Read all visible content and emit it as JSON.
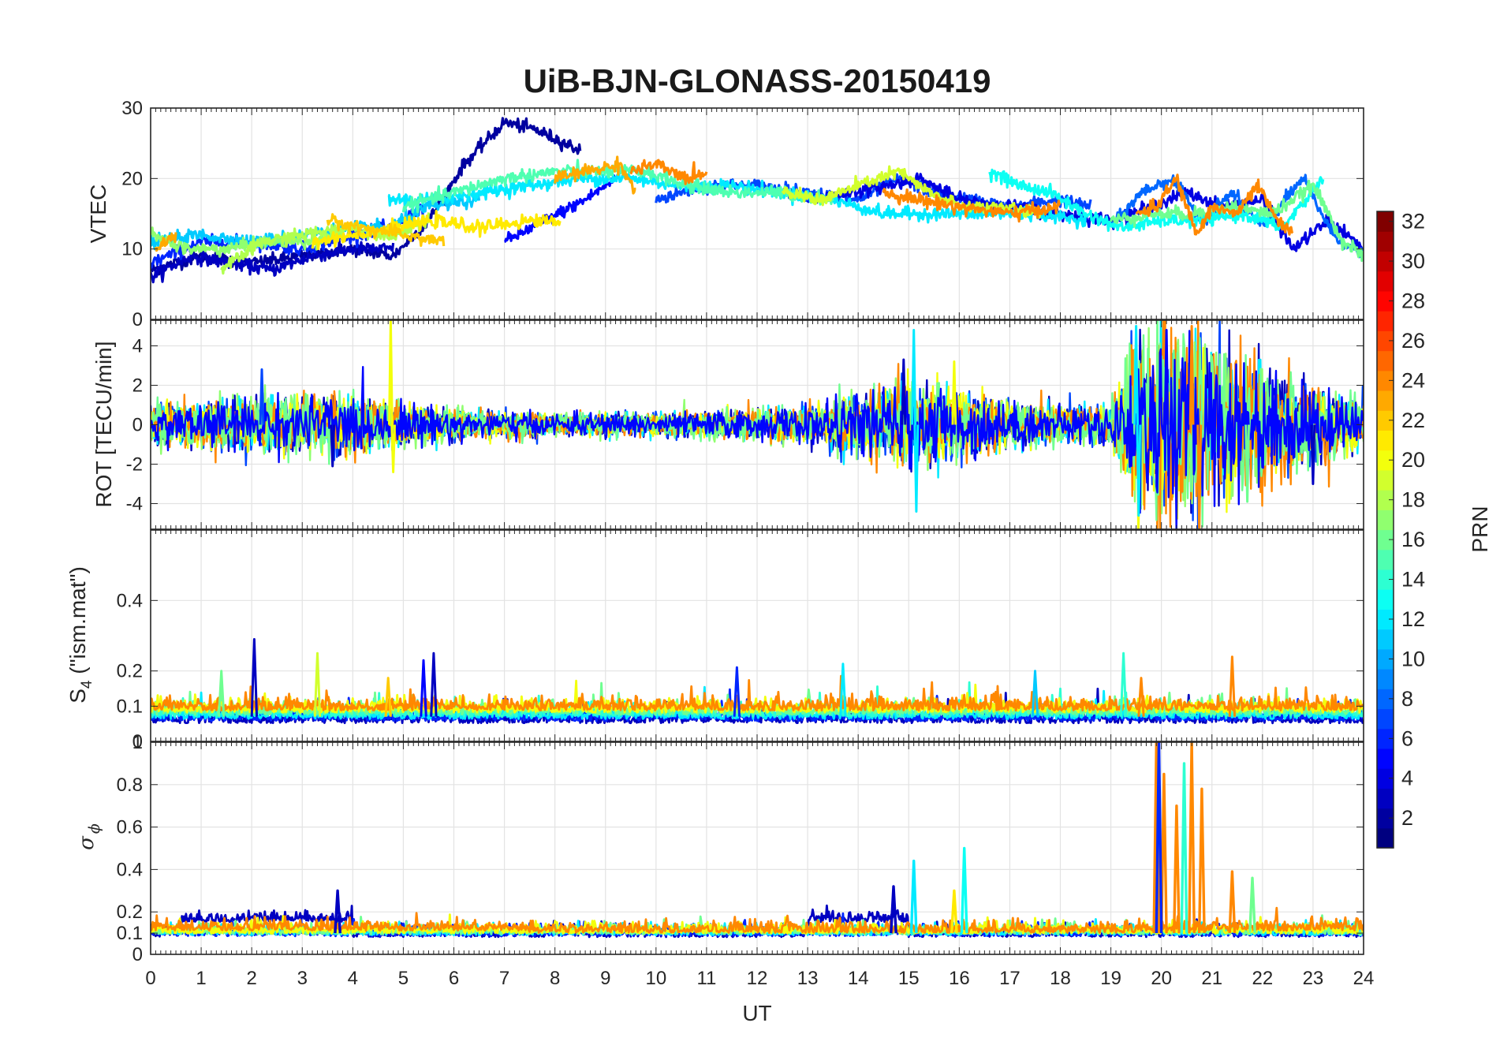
{
  "chart_data": {
    "type": "line",
    "title": "UiB-BJN-GLONASS-20150419",
    "xlabel": "UT",
    "x_ticks": [
      "0",
      "1",
      "2",
      "3",
      "4",
      "5",
      "6",
      "7",
      "8",
      "9",
      "10",
      "11",
      "12",
      "13",
      "14",
      "15",
      "16",
      "17",
      "18",
      "19",
      "20",
      "21",
      "22",
      "23",
      "24"
    ],
    "xlim": [
      0,
      24
    ],
    "colorbar": {
      "label": "PRN",
      "colormap": "jet",
      "range": [
        1,
        32
      ],
      "ticks": [
        "2",
        "4",
        "6",
        "8",
        "10",
        "12",
        "14",
        "16",
        "18",
        "20",
        "22",
        "24",
        "26",
        "28",
        "30",
        "32"
      ]
    },
    "panels": [
      {
        "ylabel": "VTEC",
        "ylim": [
          0,
          30
        ],
        "y_ticks": [
          "0",
          "10",
          "20",
          "30"
        ],
        "series": [
          {
            "prn": 2,
            "x": [
              0,
              1,
              2,
              3,
              4,
              4.8,
              5.5,
              6.2,
              7,
              7.6,
              8.5
            ],
            "y": [
              7,
              9,
              8,
              9,
              10,
              9,
              14,
              22,
              28,
              27,
              24
            ]
          },
          {
            "prn": 3,
            "x": [
              0,
              0.8,
              1.6,
              2.4,
              3.2,
              4,
              4.8
            ],
            "y": [
              6,
              9,
              8,
              7,
              9,
              10,
              10
            ]
          },
          {
            "prn": 6,
            "x": [
              0,
              1,
              2,
              3,
              4,
              4.8,
              5.4
            ],
            "y": [
              8,
              11,
              11,
              10,
              12,
              13,
              16
            ]
          },
          {
            "prn": 5,
            "x": [
              7,
              7.8,
              8.6,
              9.2
            ],
            "y": [
              11,
              14,
              17,
              20
            ]
          },
          {
            "prn": 7,
            "x": [
              10,
              11,
              12,
              13,
              14,
              14.8,
              15.5,
              16.2,
              17,
              18,
              18.6
            ],
            "y": [
              17,
              19,
              19,
              18,
              17,
              20,
              18,
              17,
              16,
              17,
              16
            ]
          },
          {
            "prn": 4,
            "x": [
              13,
              13.8,
              14.6,
              15.2,
              16,
              17,
              18,
              19,
              19.8,
              20.5,
              21.2,
              22,
              22.6,
              23.3,
              24
            ],
            "y": [
              17,
              18,
              19,
              20,
              17,
              16,
              15,
              14,
              16,
              18,
              16,
              17,
              10,
              14,
              10
            ]
          },
          {
            "prn": 8,
            "x": [
              19,
              19.6,
              20.2,
              20.8,
              21.4,
              22,
              22.8,
              23.4,
              24
            ],
            "y": [
              13,
              18,
              20,
              14,
              18,
              13,
              20,
              12,
              9
            ]
          },
          {
            "prn": 11,
            "x": [
              0,
              1,
              2,
              3,
              4,
              4.7,
              5.5,
              6.5
            ],
            "y": [
              11,
              12,
              11,
              12,
              13,
              13,
              16,
              17
            ]
          },
          {
            "prn": 12,
            "x": [
              4.7,
              5.6,
              6.5,
              7.5,
              8.5,
              9.5,
              10.5,
              11.5,
              12.5,
              13.5,
              14.5,
              15.5,
              16.5,
              17.5,
              18.5
            ],
            "y": [
              17,
              17,
              18,
              19,
              20,
              20,
              19,
              19,
              18,
              17,
              15,
              15,
              15,
              15,
              14
            ]
          },
          {
            "prn": 13,
            "x": [
              16.6,
              17.2,
              17.8,
              18.5,
              19.2,
              20,
              20.8,
              21.6,
              22.4,
              23.2
            ],
            "y": [
              21,
              19,
              18,
              15,
              13,
              14,
              14,
              15,
              13,
              20
            ]
          },
          {
            "prn": 15,
            "x": [
              5,
              6,
              7,
              8,
              9,
              9.8,
              10.6,
              11.5,
              12.5,
              13.5
            ],
            "y": [
              16,
              18,
              20,
              21,
              21,
              21,
              19,
              18,
              18,
              17
            ]
          },
          {
            "prn": 16,
            "x": [
              19,
              19.8,
              20.6,
              21.4,
              22.2,
              23,
              23.6,
              24
            ],
            "y": [
              14,
              15,
              15,
              16,
              15,
              19,
              11,
              9
            ]
          },
          {
            "prn": 17,
            "x": [
              0,
              0.7,
              1.5,
              2.3,
              3,
              3.8
            ],
            "y": [
              12,
              10,
              10,
              11,
              11,
              12
            ]
          },
          {
            "prn": 18,
            "x": [
              1.4,
              2.2,
              3,
              4,
              4.8,
              5.5
            ],
            "y": [
              7,
              11,
              12,
              13,
              12,
              14
            ]
          },
          {
            "prn": 19,
            "x": [
              12.5,
              13.3,
              14,
              14.8,
              15.4,
              16,
              16.8,
              17.6
            ],
            "y": [
              18,
              17,
              19,
              21,
              18,
              16,
              16,
              15
            ]
          },
          {
            "prn": 21,
            "x": [
              3.2,
              4,
              4.8,
              5.6,
              6.5,
              7.5,
              8.1
            ],
            "y": [
              11,
              12,
              13,
              14,
              13,
              14,
              14
            ]
          },
          {
            "prn": 22,
            "x": [
              3.5,
              4.2,
              5,
              5.8
            ],
            "y": [
              14,
              13,
              12,
              11
            ]
          },
          {
            "prn": 23,
            "x": [
              0.1,
              0.5
            ],
            "y": [
              10,
              12
            ]
          },
          {
            "prn": 23,
            "x": [
              8,
              8.6,
              9.3,
              9.6
            ],
            "y": [
              20,
              21,
              22,
              18
            ]
          },
          {
            "prn": 24,
            "x": [
              9.5,
              10,
              10.6,
              11
            ],
            "y": [
              21,
              22,
              20,
              21
            ]
          },
          {
            "prn": 24,
            "x": [
              14.5,
              15.2,
              16,
              17,
              18
            ],
            "y": [
              18,
              17,
              16,
              15,
              16
            ]
          },
          {
            "prn": 24,
            "x": [
              19.5,
              19.9,
              20.3,
              20.7,
              21,
              21.5,
              21.9,
              22.3,
              22.6
            ],
            "y": [
              15,
              16,
              20,
              12,
              16,
              15,
              19,
              14,
              12
            ]
          }
        ]
      },
      {
        "ylabel": "ROT [TECU/min]",
        "ylim": [
          -5.3,
          5.3
        ],
        "y_ticks": [
          "-4",
          "-2",
          "0",
          "2",
          "4"
        ],
        "noise_profile": {
          "hours": [
            0,
            1,
            2,
            3,
            4,
            5,
            6,
            7,
            8,
            9,
            10,
            11,
            12,
            13,
            14,
            15,
            16,
            17,
            18,
            19,
            19.5,
            20,
            21,
            22,
            23,
            24
          ],
          "rms": [
            0.6,
            0.6,
            0.7,
            0.7,
            0.8,
            0.6,
            0.4,
            0.35,
            0.3,
            0.3,
            0.3,
            0.35,
            0.4,
            0.5,
            0.8,
            1.1,
            1.0,
            0.6,
            0.5,
            0.5,
            2.2,
            2.3,
            2.0,
            1.6,
            1.0,
            0.6
          ]
        },
        "spikes": [
          {
            "prn": 20,
            "x": 4.75,
            "y": 5.3
          },
          {
            "prn": 20,
            "x": 4.8,
            "y": -2.4
          },
          {
            "prn": 12,
            "x": 15.1,
            "y": 4.8
          },
          {
            "prn": 12,
            "x": 15.15,
            "y": -4.4
          },
          {
            "prn": 3,
            "x": 14.9,
            "y": 3.3
          },
          {
            "prn": 20,
            "x": 15.9,
            "y": 3.2
          },
          {
            "prn": 12,
            "x": 19.55,
            "y": -4.6
          },
          {
            "prn": 12,
            "x": 19.5,
            "y": 5.0
          },
          {
            "prn": 24,
            "x": 20.75,
            "y": -5.3
          },
          {
            "prn": 24,
            "x": 20.6,
            "y": 5.0
          },
          {
            "prn": 5,
            "x": 20.1,
            "y": 4.8
          },
          {
            "prn": 16,
            "x": 21.7,
            "y": -3.9
          },
          {
            "prn": 3,
            "x": 23.0,
            "y": -3.0
          },
          {
            "prn": 7,
            "x": 2.2,
            "y": 2.8
          },
          {
            "prn": 3,
            "x": 3.6,
            "y": -2.1
          }
        ]
      },
      {
        "ylabel": "S4 (\"ism.mat\")",
        "ylim": [
          0,
          0.6
        ],
        "y_ticks": [
          "0",
          "0.1",
          "0.2",
          "0.4"
        ],
        "baseline": 0.07,
        "spikes": [
          {
            "prn": 3,
            "x": 2.05,
            "y": 0.29
          },
          {
            "prn": 19,
            "x": 3.3,
            "y": 0.25
          },
          {
            "prn": 3,
            "x": 5.6,
            "y": 0.25
          },
          {
            "prn": 5,
            "x": 5.4,
            "y": 0.23
          },
          {
            "prn": 16,
            "x": 1.4,
            "y": 0.2
          },
          {
            "prn": 12,
            "x": 13.7,
            "y": 0.22
          },
          {
            "prn": 6,
            "x": 11.6,
            "y": 0.21
          },
          {
            "prn": 14,
            "x": 19.25,
            "y": 0.25
          },
          {
            "prn": 24,
            "x": 21.4,
            "y": 0.24
          },
          {
            "prn": 24,
            "x": 19.6,
            "y": 0.18
          },
          {
            "prn": 22,
            "x": 4.7,
            "y": 0.18
          },
          {
            "prn": 11,
            "x": 17.5,
            "y": 0.2
          }
        ]
      },
      {
        "ylabel": "σ φ",
        "ylim": [
          0,
          1
        ],
        "y_ticks": [
          "0",
          "0.1",
          "0.2",
          "0.4",
          "0.6",
          "0.8",
          "1"
        ],
        "baseline": 0.1,
        "spikes": [
          {
            "prn": 24,
            "x": 19.9,
            "y": 1.0
          },
          {
            "prn": 24,
            "x": 20.05,
            "y": 0.85
          },
          {
            "prn": 24,
            "x": 20.3,
            "y": 0.7
          },
          {
            "prn": 24,
            "x": 20.6,
            "y": 1.0
          },
          {
            "prn": 24,
            "x": 20.8,
            "y": 0.78
          },
          {
            "prn": 24,
            "x": 21.4,
            "y": 0.39
          },
          {
            "prn": 6,
            "x": 19.95,
            "y": 1.0
          },
          {
            "prn": 14,
            "x": 20.45,
            "y": 0.9
          },
          {
            "prn": 12,
            "x": 15.1,
            "y": 0.44
          },
          {
            "prn": 13,
            "x": 16.1,
            "y": 0.5
          },
          {
            "prn": 16,
            "x": 21.8,
            "y": 0.36
          },
          {
            "prn": 3,
            "x": 14.7,
            "y": 0.32
          },
          {
            "prn": 3,
            "x": 3.7,
            "y": 0.3
          },
          {
            "prn": 21,
            "x": 15.9,
            "y": 0.3
          }
        ]
      }
    ]
  }
}
